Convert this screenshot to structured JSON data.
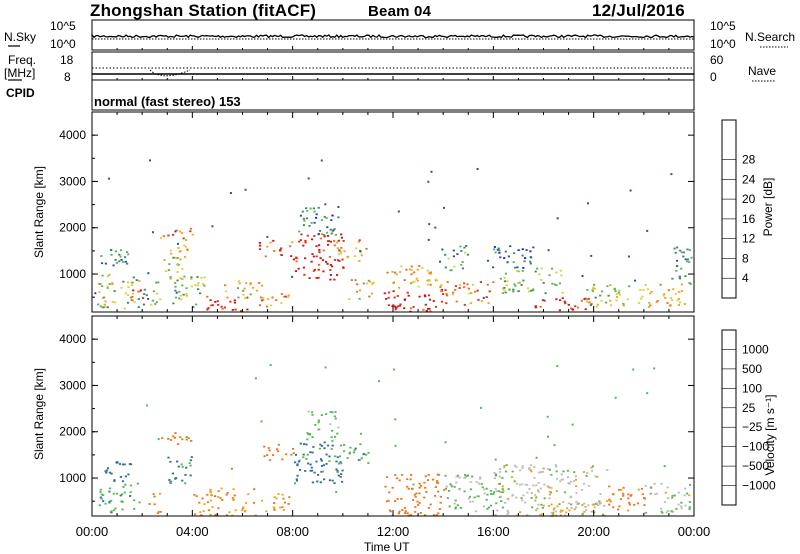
{
  "header": {
    "station": "Zhongshan Station (fitACF)",
    "beam": "Beam 04",
    "date": "12/Jul/2016"
  },
  "top_panels": {
    "nsky_label": "N.Sky",
    "nsky_ticks": [
      "10^5",
      "10^0"
    ],
    "nsearch_label": "N.Search",
    "nsearch_ticks": [
      "10^5",
      "10^0"
    ],
    "freq_label": "Freq.",
    "freq_unit": "[MHz]",
    "freq_ticks": [
      "18",
      "8"
    ],
    "nave_label": "Nave",
    "nave_ticks": [
      "60",
      "0"
    ],
    "cpid_label": "CPID",
    "cpid_text": "normal (fast stereo) 153"
  },
  "colors": {
    "power_scale": [
      "#1c1cff",
      "#2e4fa8",
      "#3b8a5a",
      "#5ab455",
      "#d7d238",
      "#f5a020",
      "#f26a17",
      "#e4281a",
      "#cc1313"
    ],
    "velocity_scale": [
      "#2c4fa8",
      "#2f6e9a",
      "#3d8a5a",
      "#59b850",
      "#bdbdbd",
      "#f3a11d",
      "#ef7618",
      "#e64418",
      "#dc1e1e"
    ]
  },
  "chart_data": [
    {
      "type": "heatmap",
      "title": "",
      "xlabel": "",
      "ylabel": "Slant Range [km]",
      "xlim": [
        "00:00",
        "24:00"
      ],
      "ylim": [
        180,
        4500
      ],
      "x_ticks": [
        "00:00",
        "04:00",
        "08:00",
        "12:00",
        "16:00",
        "20:00",
        "00:00"
      ],
      "y_ticks": [
        "1000",
        "2000",
        "3000",
        "4000"
      ],
      "colorbar": {
        "label": "Power [dB]",
        "ticks": [
          "4",
          "8",
          "12",
          "16",
          "20",
          "24",
          "28"
        ],
        "range": [
          0,
          30
        ]
      },
      "blobs": [
        {
          "t": [
            0.2,
            1.9
          ],
          "r": [
            260,
            1050
          ],
          "v": 13
        },
        {
          "t": [
            1.2,
            2.0
          ],
          "r": [
            450,
            700
          ],
          "v": 24
        },
        {
          "t": [
            0.3,
            1.6
          ],
          "r": [
            1150,
            1600
          ],
          "v": 8
        },
        {
          "t": [
            2.0,
            2.7
          ],
          "r": [
            300,
            900
          ],
          "v": 10
        },
        {
          "t": [
            2.8,
            3.8
          ],
          "r": [
            900,
            1650
          ],
          "v": 14
        },
        {
          "t": [
            2.6,
            4.0
          ],
          "r": [
            1750,
            2000
          ],
          "v": 21
        },
        {
          "t": [
            3.0,
            3.9
          ],
          "r": [
            1500,
            1650
          ],
          "v": 18
        },
        {
          "t": [
            3.2,
            4.5
          ],
          "r": [
            300,
            1000
          ],
          "v": 12
        },
        {
          "t": [
            4.5,
            6.2
          ],
          "r": [
            200,
            550
          ],
          "v": 27
        },
        {
          "t": [
            5.2,
            6.8
          ],
          "r": [
            500,
            900
          ],
          "v": 16
        },
        {
          "t": [
            6.6,
            8.0
          ],
          "r": [
            1400,
            1750
          ],
          "v": 24
        },
        {
          "t": [
            6.6,
            8.0
          ],
          "r": [
            300,
            650
          ],
          "v": 19
        },
        {
          "t": [
            8.0,
            10.0
          ],
          "r": [
            900,
            1900
          ],
          "v": 27
        },
        {
          "t": [
            8.2,
            9.8
          ],
          "r": [
            1850,
            2500
          ],
          "v": 8
        },
        {
          "t": [
            9.6,
            11.0
          ],
          "r": [
            1300,
            1750
          ],
          "v": 19
        },
        {
          "t": [
            10.2,
            11.2
          ],
          "r": [
            450,
            900
          ],
          "v": 16
        },
        {
          "t": [
            11.6,
            14.0
          ],
          "r": [
            200,
            700
          ],
          "v": 27
        },
        {
          "t": [
            11.6,
            13.8
          ],
          "r": [
            700,
            1200
          ],
          "v": 18
        },
        {
          "t": [
            13.8,
            16.0
          ],
          "r": [
            350,
            850
          ],
          "v": 20
        },
        {
          "t": [
            14.0,
            15.0
          ],
          "r": [
            1100,
            1650
          ],
          "v": 10
        },
        {
          "t": [
            15.6,
            17.6
          ],
          "r": [
            1150,
            1650
          ],
          "v": 6
        },
        {
          "t": [
            16.2,
            18.8
          ],
          "r": [
            600,
            1150
          ],
          "v": 12
        },
        {
          "t": [
            17.6,
            20.0
          ],
          "r": [
            200,
            500
          ],
          "v": 26
        },
        {
          "t": [
            19.6,
            21.8
          ],
          "r": [
            300,
            800
          ],
          "v": 14
        },
        {
          "t": [
            21.8,
            23.6
          ],
          "r": [
            250,
            800
          ],
          "v": 18
        },
        {
          "t": [
            23.0,
            23.9
          ],
          "r": [
            800,
            1600
          ],
          "v": 8
        }
      ]
    },
    {
      "type": "heatmap",
      "title": "",
      "xlabel": "Time UT",
      "ylabel": "Slant Range [km]",
      "xlim": [
        "00:00",
        "24:00"
      ],
      "ylim": [
        180,
        4500
      ],
      "x_ticks": [
        "00:00",
        "04:00",
        "08:00",
        "12:00",
        "16:00",
        "20:00",
        "00:00"
      ],
      "y_ticks": [
        "1000",
        "2000",
        "3000",
        "4000"
      ],
      "colorbar": {
        "label": "Velocity [m s⁻¹]",
        "ticks": [
          "1000",
          "500",
          "100",
          "25",
          "−25",
          "−100",
          "−500",
          "−1000"
        ]
      },
      "blobs": [
        {
          "t": [
            0.2,
            1.9
          ],
          "r": [
            250,
            900
          ],
          "v": 80
        },
        {
          "t": [
            0.3,
            1.6
          ],
          "r": [
            950,
            1400
          ],
          "v": 200
        },
        {
          "t": [
            2.2,
            2.7
          ],
          "r": [
            250,
            700
          ],
          "v": -150
        },
        {
          "t": [
            3.0,
            4.0
          ],
          "r": [
            900,
            1500
          ],
          "v": 120
        },
        {
          "t": [
            2.6,
            4.0
          ],
          "r": [
            1750,
            2000
          ],
          "v": -200
        },
        {
          "t": [
            4.0,
            6.5
          ],
          "r": [
            200,
            800
          ],
          "v": -120
        },
        {
          "t": [
            6.8,
            8.0
          ],
          "r": [
            1400,
            1750
          ],
          "v": -300
        },
        {
          "t": [
            6.7,
            8.0
          ],
          "r": [
            300,
            700
          ],
          "v": -100
        },
        {
          "t": [
            8.0,
            10.0
          ],
          "r": [
            900,
            1900
          ],
          "v": 150
        },
        {
          "t": [
            8.5,
            9.8
          ],
          "r": [
            1900,
            2500
          ],
          "v": 60
        },
        {
          "t": [
            9.6,
            11.0
          ],
          "r": [
            1300,
            1750
          ],
          "v": 80
        },
        {
          "t": [
            11.6,
            14.0
          ],
          "r": [
            200,
            1100
          ],
          "v": -200
        },
        {
          "t": [
            14.0,
            16.5
          ],
          "r": [
            300,
            1100
          ],
          "v": 40
        },
        {
          "t": [
            16.0,
            20.5
          ],
          "r": [
            200,
            1300
          ],
          "v": 0
        },
        {
          "t": [
            17.5,
            20.0
          ],
          "r": [
            200,
            450
          ],
          "v": -60
        },
        {
          "t": [
            20.5,
            22.0
          ],
          "r": [
            300,
            900
          ],
          "v": -150
        },
        {
          "t": [
            22.0,
            23.8
          ],
          "r": [
            250,
            900
          ],
          "v": 10
        }
      ]
    }
  ]
}
